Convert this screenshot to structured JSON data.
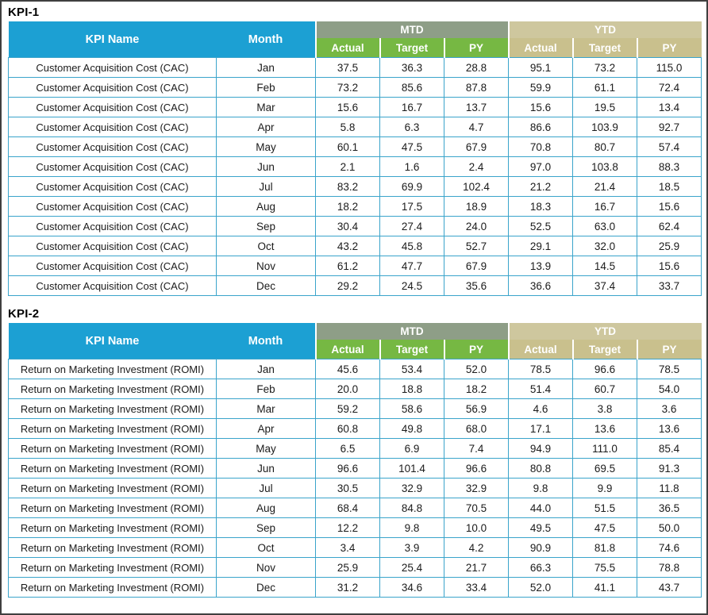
{
  "page": {
    "background": "#ffffff",
    "border_color": "#3f3f3f"
  },
  "colors": {
    "kpi_header_bg": "#1ca0d3",
    "mtd_group_bg": "#8e9e87",
    "mtd_sub_bg": "#76b843",
    "ytd_group_bg": "#cec79e",
    "ytd_sub_bg": "#c9c08d",
    "header_text": "#ffffff",
    "grid_line": "#3aa4cb",
    "data_text": "#1b1b1b"
  },
  "chart_data": [
    {
      "type": "table",
      "title": "KPI-1",
      "kpi_name": "Customer Acquisition Cost (CAC)",
      "headers": {
        "kpi": "KPI Name",
        "month": "Month",
        "groups": [
          "MTD",
          "YTD"
        ],
        "sub": [
          "Actual",
          "Target",
          "PY"
        ]
      },
      "columns": [
        "KPI Name",
        "Month",
        "MTD Actual",
        "MTD Target",
        "MTD PY",
        "YTD Actual",
        "YTD Target",
        "YTD PY"
      ],
      "rows": [
        {
          "kpi": "Customer Acquisition Cost (CAC)",
          "month": "Jan",
          "values": [
            37.5,
            36.3,
            28.8,
            95.1,
            73.2,
            115.0
          ]
        },
        {
          "kpi": "Customer Acquisition Cost (CAC)",
          "month": "Feb",
          "values": [
            73.2,
            85.6,
            87.8,
            59.9,
            61.1,
            72.4
          ]
        },
        {
          "kpi": "Customer Acquisition Cost (CAC)",
          "month": "Mar",
          "values": [
            15.6,
            16.7,
            13.7,
            15.6,
            19.5,
            13.4
          ]
        },
        {
          "kpi": "Customer Acquisition Cost (CAC)",
          "month": "Apr",
          "values": [
            5.8,
            6.3,
            4.7,
            86.6,
            103.9,
            92.7
          ]
        },
        {
          "kpi": "Customer Acquisition Cost (CAC)",
          "month": "May",
          "values": [
            60.1,
            47.5,
            67.9,
            70.8,
            80.7,
            57.4
          ]
        },
        {
          "kpi": "Customer Acquisition Cost (CAC)",
          "month": "Jun",
          "values": [
            2.1,
            1.6,
            2.4,
            97.0,
            103.8,
            88.3
          ]
        },
        {
          "kpi": "Customer Acquisition Cost (CAC)",
          "month": "Jul",
          "values": [
            83.2,
            69.9,
            102.4,
            21.2,
            21.4,
            18.5
          ]
        },
        {
          "kpi": "Customer Acquisition Cost (CAC)",
          "month": "Aug",
          "values": [
            18.2,
            17.5,
            18.9,
            18.3,
            16.7,
            15.6
          ]
        },
        {
          "kpi": "Customer Acquisition Cost (CAC)",
          "month": "Sep",
          "values": [
            30.4,
            27.4,
            24.0,
            52.5,
            63.0,
            62.4
          ]
        },
        {
          "kpi": "Customer Acquisition Cost (CAC)",
          "month": "Oct",
          "values": [
            43.2,
            45.8,
            52.7,
            29.1,
            32.0,
            25.9
          ]
        },
        {
          "kpi": "Customer Acquisition Cost (CAC)",
          "month": "Nov",
          "values": [
            61.2,
            47.7,
            67.9,
            13.9,
            14.5,
            15.6
          ]
        },
        {
          "kpi": "Customer Acquisition Cost (CAC)",
          "month": "Dec",
          "values": [
            29.2,
            24.5,
            35.6,
            36.6,
            37.4,
            33.7
          ]
        }
      ]
    },
    {
      "type": "table",
      "title": "KPI-2",
      "kpi_name": "Return on Marketing Investment (ROMI)",
      "headers": {
        "kpi": "KPI Name",
        "month": "Month",
        "groups": [
          "MTD",
          "YTD"
        ],
        "sub": [
          "Actual",
          "Target",
          "PY"
        ]
      },
      "columns": [
        "KPI Name",
        "Month",
        "MTD Actual",
        "MTD Target",
        "MTD PY",
        "YTD Actual",
        "YTD Target",
        "YTD PY"
      ],
      "rows": [
        {
          "kpi": "Return on Marketing Investment (ROMI)",
          "month": "Jan",
          "values": [
            45.6,
            53.4,
            52.0,
            78.5,
            96.6,
            78.5
          ]
        },
        {
          "kpi": "Return on Marketing Investment (ROMI)",
          "month": "Feb",
          "values": [
            20.0,
            18.8,
            18.2,
            51.4,
            60.7,
            54.0
          ]
        },
        {
          "kpi": "Return on Marketing Investment (ROMI)",
          "month": "Mar",
          "values": [
            59.2,
            58.6,
            56.9,
            4.6,
            3.8,
            3.6
          ]
        },
        {
          "kpi": "Return on Marketing Investment (ROMI)",
          "month": "Apr",
          "values": [
            60.8,
            49.8,
            68.0,
            17.1,
            13.6,
            13.6
          ]
        },
        {
          "kpi": "Return on Marketing Investment (ROMI)",
          "month": "May",
          "values": [
            6.5,
            6.9,
            7.4,
            94.9,
            111.0,
            85.4
          ]
        },
        {
          "kpi": "Return on Marketing Investment (ROMI)",
          "month": "Jun",
          "values": [
            96.6,
            101.4,
            96.6,
            80.8,
            69.5,
            91.3
          ]
        },
        {
          "kpi": "Return on Marketing Investment (ROMI)",
          "month": "Jul",
          "values": [
            30.5,
            32.9,
            32.9,
            9.8,
            9.9,
            11.8
          ]
        },
        {
          "kpi": "Return on Marketing Investment (ROMI)",
          "month": "Aug",
          "values": [
            68.4,
            84.8,
            70.5,
            44.0,
            51.5,
            36.5
          ]
        },
        {
          "kpi": "Return on Marketing Investment (ROMI)",
          "month": "Sep",
          "values": [
            12.2,
            9.8,
            10.0,
            49.5,
            47.5,
            50.0
          ]
        },
        {
          "kpi": "Return on Marketing Investment (ROMI)",
          "month": "Oct",
          "values": [
            3.4,
            3.9,
            4.2,
            90.9,
            81.8,
            74.6
          ]
        },
        {
          "kpi": "Return on Marketing Investment (ROMI)",
          "month": "Nov",
          "values": [
            25.9,
            25.4,
            21.7,
            66.3,
            75.5,
            78.8
          ]
        },
        {
          "kpi": "Return on Marketing Investment (ROMI)",
          "month": "Dec",
          "values": [
            31.2,
            34.6,
            33.4,
            52.0,
            41.1,
            43.7
          ]
        }
      ]
    }
  ]
}
